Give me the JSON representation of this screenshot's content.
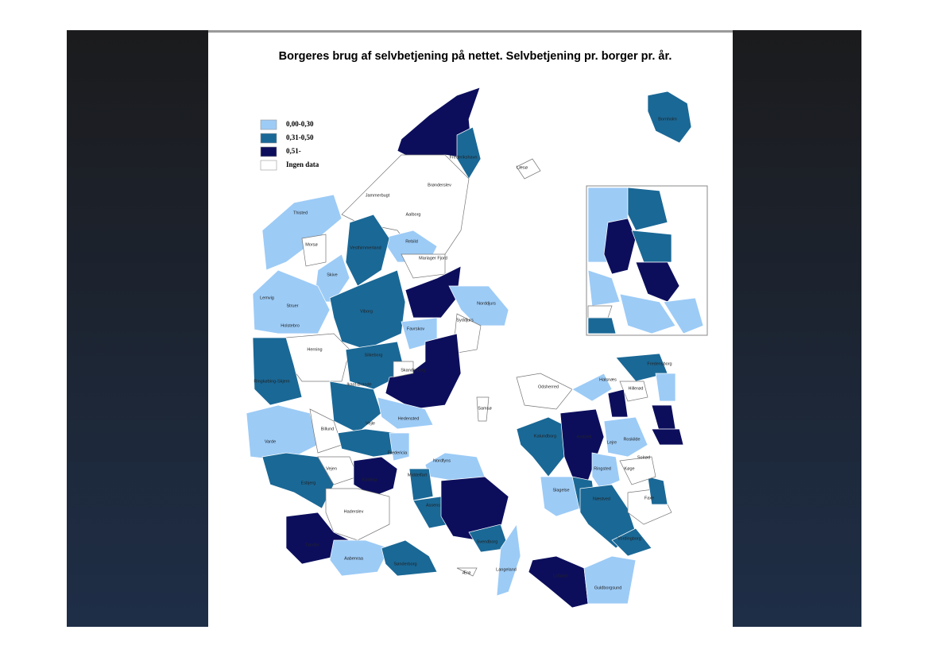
{
  "title": "Borgeres brug af selvbetjening på nettet. Selvbetjening pr. borger pr. år.",
  "legend": [
    {
      "label": "0,00-0,30",
      "color": "#9ccbf6"
    },
    {
      "label": "0,31-0,50",
      "color": "#1a6896"
    },
    {
      "label": "0,51-",
      "color": "#0c0e5c"
    },
    {
      "label": "Ingen data",
      "color": "#ffffff"
    }
  ],
  "municipalities": [
    "Frederikshavn",
    "Læsø",
    "Brønderslev",
    "Jammerbugt",
    "Thisted",
    "Aalborg",
    "Morsø",
    "Rebild",
    "Vesthimmerland",
    "Mariager Fjord",
    "Skive",
    "Lemvig",
    "Struer",
    "Norddjurs",
    "Holstebro",
    "Viborg",
    "Syddjurs",
    "Favrskov",
    "Herning",
    "Silkeborg",
    "Skanderborg",
    "Ringkøbing-Skjern",
    "Ikast-Brande",
    "Samsø",
    "Hedensted",
    "Billund",
    "Vejle",
    "Varde",
    "Fredericia",
    "Vejen",
    "Kolding",
    "Esbjerg",
    "Haderslev",
    "Tønder",
    "Aabenraa",
    "Sønderborg",
    "Nordfyns",
    "Middelfart",
    "Assens",
    "Svendborg",
    "Ærø",
    "Langeland",
    "Bornholm",
    "Odsherred",
    "Kalundborg",
    "Holbæk",
    "Lejre",
    "Roskilde",
    "Solrød",
    "Køge",
    "Ringsted",
    "Slagelse",
    "Næstved",
    "Faxe",
    "Vordingborg",
    "Lolland",
    "Guldborgsund",
    "Halsnæs",
    "Hillerød",
    "Fredensborg"
  ]
}
